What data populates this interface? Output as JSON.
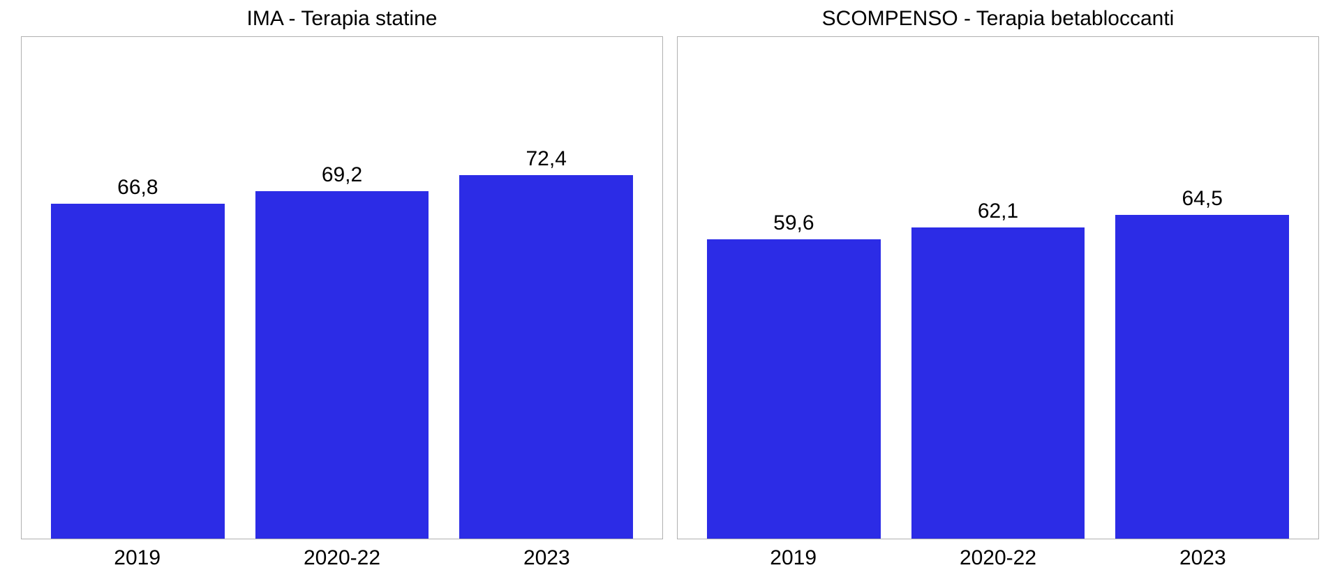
{
  "layout": {
    "panels": 2,
    "arrangement": "side-by-side",
    "background_color": "#ffffff",
    "border_color": "#b0b0b0",
    "title_fontsize": 30,
    "label_fontsize": 30,
    "tick_fontsize": 30,
    "text_color": "#000000",
    "ylim": [
      0,
      100
    ],
    "bar_width_ratio": 0.85,
    "bar_color": "#2c2ce6"
  },
  "charts": [
    {
      "type": "bar",
      "title": "IMA - Terapia statine",
      "categories": [
        "2019",
        "2020-22",
        "2023"
      ],
      "values": [
        66.8,
        69.2,
        72.4
      ],
      "value_labels": [
        "66,8",
        "69,2",
        "72,4"
      ],
      "bar_colors": [
        "#2c2ce6",
        "#2c2ce6",
        "#2c2ce6"
      ]
    },
    {
      "type": "bar",
      "title": "SCOMPENSO - Terapia betabloccanti",
      "categories": [
        "2019",
        "2020-22",
        "2023"
      ],
      "values": [
        59.6,
        62.1,
        64.5
      ],
      "value_labels": [
        "59,6",
        "62,1",
        "64,5"
      ],
      "bar_colors": [
        "#2c2ce6",
        "#2c2ce6",
        "#2c2ce6"
      ]
    }
  ]
}
